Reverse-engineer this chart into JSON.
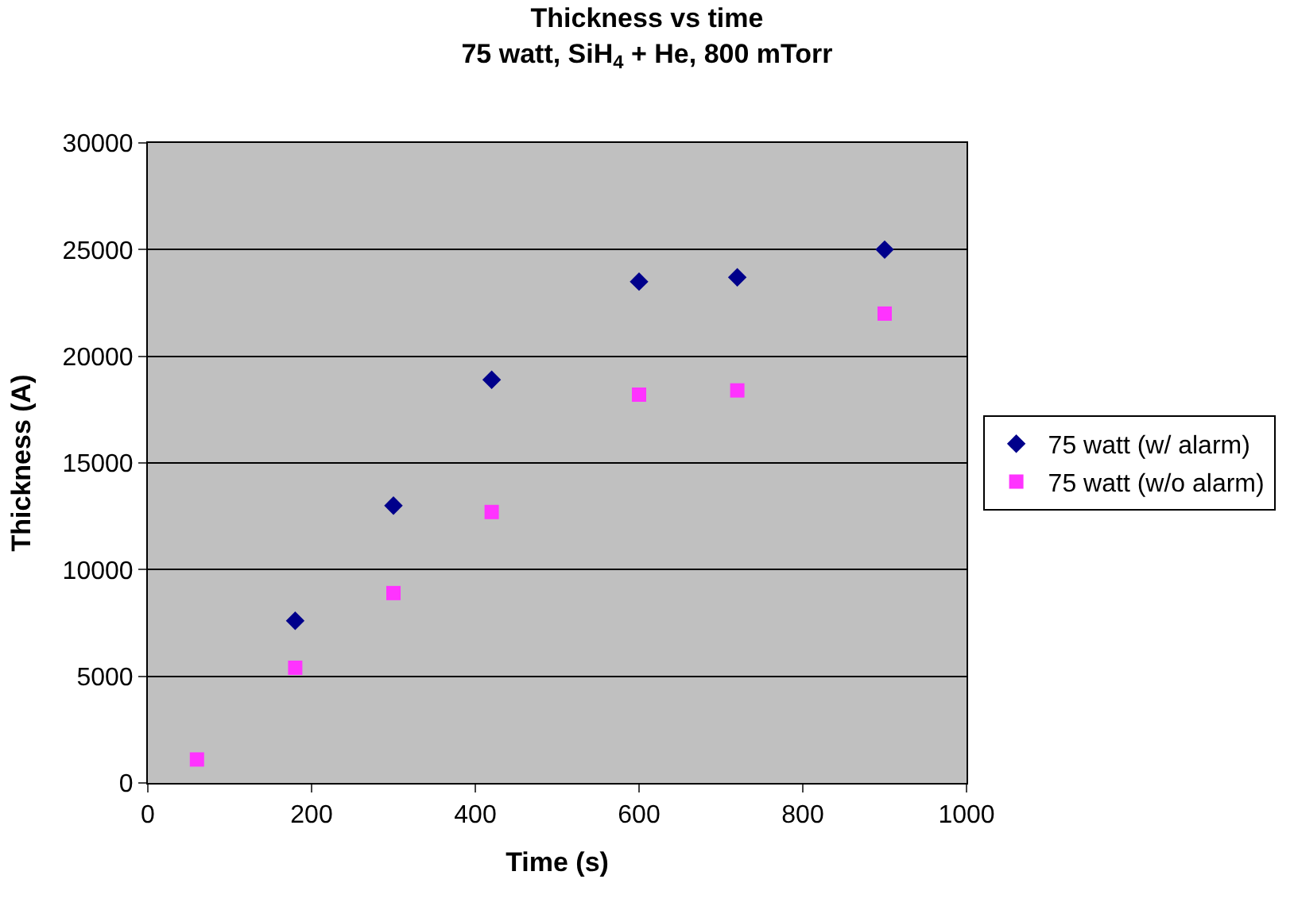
{
  "chart_data": {
    "type": "scatter",
    "title": "Thickness vs time",
    "subtitle": "75 watt, SiH$_{4}$ + He, 800 mTorr",
    "xlabel": "Time (s)",
    "ylabel": "Thickness (A)",
    "series": [
      {
        "name": "75 watt (w/ alarm)",
        "color": "#00008b",
        "marker": "diamond",
        "x": [
          180,
          300,
          420,
          600,
          720,
          900
        ],
        "values": [
          7600,
          13000,
          18900,
          23500,
          23700,
          25000
        ]
      },
      {
        "name": "75 watt (w/o alarm)",
        "color": "#ff33ff",
        "marker": "square",
        "x": [
          60,
          180,
          300,
          420,
          600,
          720,
          900
        ],
        "values": [
          1100,
          5400,
          8900,
          12700,
          18200,
          18400,
          22000
        ]
      }
    ],
    "xlim": [
      0,
      1000
    ],
    "xticks": [
      0,
      200,
      400,
      600,
      800,
      1000
    ],
    "ylim": [
      0,
      30000
    ],
    "yticks": [
      0,
      5000,
      10000,
      15000,
      20000,
      25000,
      30000
    ],
    "grid": "y",
    "legend": "right"
  }
}
